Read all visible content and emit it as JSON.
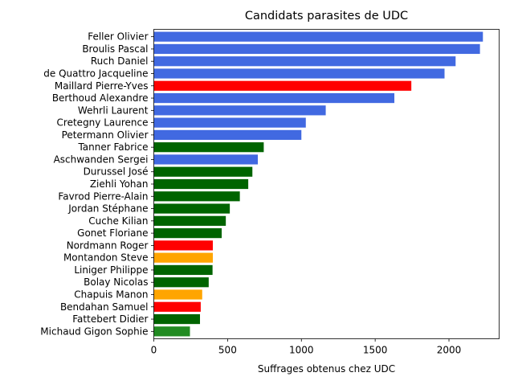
{
  "chart_data": {
    "type": "bar",
    "orientation": "horizontal",
    "title": "Candidats parasites de UDC",
    "xlabel": "Suffrages obtenus chez UDC",
    "ylabel": "",
    "xlim": [
      0,
      2340
    ],
    "xticks": [
      0,
      500,
      1000,
      1500,
      2000
    ],
    "grid": false,
    "categories": [
      "Feller Olivier",
      "Broulis Pascal",
      "Ruch Daniel",
      "de Quattro Jacqueline",
      "Maillard Pierre-Yves",
      "Berthoud Alexandre",
      "Wehrli Laurent",
      "Cretegny Laurence",
      "Petermann Olivier",
      "Tanner Fabrice",
      "Aschwanden Sergei",
      "Durussel José",
      "Ziehli Yohan",
      "Favrod Pierre-Alain",
      "Jordan Stéphane",
      "Cuche Kilian",
      "Gonet Floriane",
      "Nordmann Roger",
      "Montandon Steve",
      "Liniger Philippe",
      "Bolay Nicolas",
      "Chapuis Manon",
      "Bendahan Samuel",
      "Fattebert Didier",
      "Michaud Gigon Sophie"
    ],
    "values": [
      2230,
      2210,
      2045,
      1970,
      1745,
      1630,
      1165,
      1030,
      1000,
      745,
      705,
      668,
      640,
      583,
      515,
      488,
      460,
      400,
      400,
      398,
      372,
      328,
      318,
      313,
      245
    ],
    "colors": [
      "#4169e1",
      "#4169e1",
      "#4169e1",
      "#4169e1",
      "#ff0000",
      "#4169e1",
      "#4169e1",
      "#4169e1",
      "#4169e1",
      "#006400",
      "#4169e1",
      "#006400",
      "#006400",
      "#006400",
      "#006400",
      "#006400",
      "#006400",
      "#ff0000",
      "#ffa500",
      "#006400",
      "#006400",
      "#ffa500",
      "#ff0000",
      "#006400",
      "#228b22"
    ]
  }
}
